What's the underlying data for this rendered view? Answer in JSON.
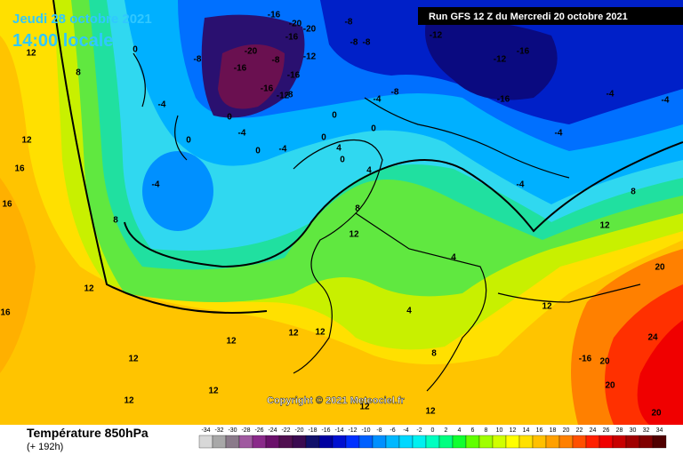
{
  "header": {
    "date": "Jeudi 28 octobre 2021",
    "time": "14:00 locale",
    "run": "Run GFS 12 Z du Mercredi 20 octobre 2021"
  },
  "copyright": "Copyright © 2021 Meteociel.fr",
  "footer": {
    "title": "Température 850hPa",
    "lead": "(+ 192h)"
  },
  "contour_labels": [
    -16,
    -20,
    -20,
    -16,
    -8,
    -16,
    -12,
    -8,
    -8,
    -20,
    -8,
    -8,
    -12,
    -12,
    -16,
    -16,
    -16,
    -16,
    -12,
    -8,
    -16,
    -4,
    -8,
    -4,
    -4,
    -4,
    0,
    0,
    0,
    -4,
    -4,
    0,
    -4,
    0,
    0,
    4,
    0,
    -4,
    4,
    -4,
    8,
    8,
    12,
    12,
    4,
    8,
    12,
    16,
    16,
    12,
    16,
    12,
    12,
    12,
    12,
    4,
    8,
    12,
    -16,
    20,
    24,
    20,
    20,
    20,
    12,
    12,
    12,
    12,
    0,
    8,
    12
  ],
  "legend": {
    "values": [
      -34,
      -32,
      -30,
      -28,
      -26,
      -24,
      -22,
      -20,
      -18,
      -16,
      -14,
      -12,
      -10,
      -8,
      -6,
      -4,
      -2,
      0,
      2,
      4,
      6,
      8,
      10,
      12,
      14,
      16,
      18,
      20,
      22,
      24,
      26,
      28,
      30,
      32,
      34
    ],
    "colors": [
      "#d8d8d8",
      "#a8a8a8",
      "#8a7a8a",
      "#a05aa0",
      "#8a2a8a",
      "#6a106a",
      "#501050",
      "#3a0a50",
      "#10106a",
      "#0000a0",
      "#0010d0",
      "#0030ff",
      "#0060ff",
      "#0090ff",
      "#00b8ff",
      "#00d8ff",
      "#00f0f0",
      "#00ffc0",
      "#00ff80",
      "#10ff30",
      "#60ff00",
      "#a0ff00",
      "#d0ff00",
      "#ffff00",
      "#ffe000",
      "#ffc000",
      "#ffa000",
      "#ff8000",
      "#ff5000",
      "#ff2000",
      "#f00000",
      "#c80000",
      "#a00000",
      "#800000",
      "#500000"
    ]
  }
}
